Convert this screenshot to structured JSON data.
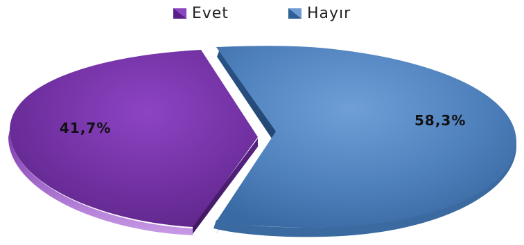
{
  "chart_data": {
    "type": "pie",
    "style": "3d-exploded",
    "legend_position": "top",
    "slices": [
      {
        "name": "Evet",
        "value": 41.7,
        "label": "41,7%",
        "color": "#7030a0"
      },
      {
        "name": "Hayır",
        "value": 58.3,
        "label": "58,3%",
        "color": "#4f81bd"
      }
    ]
  }
}
